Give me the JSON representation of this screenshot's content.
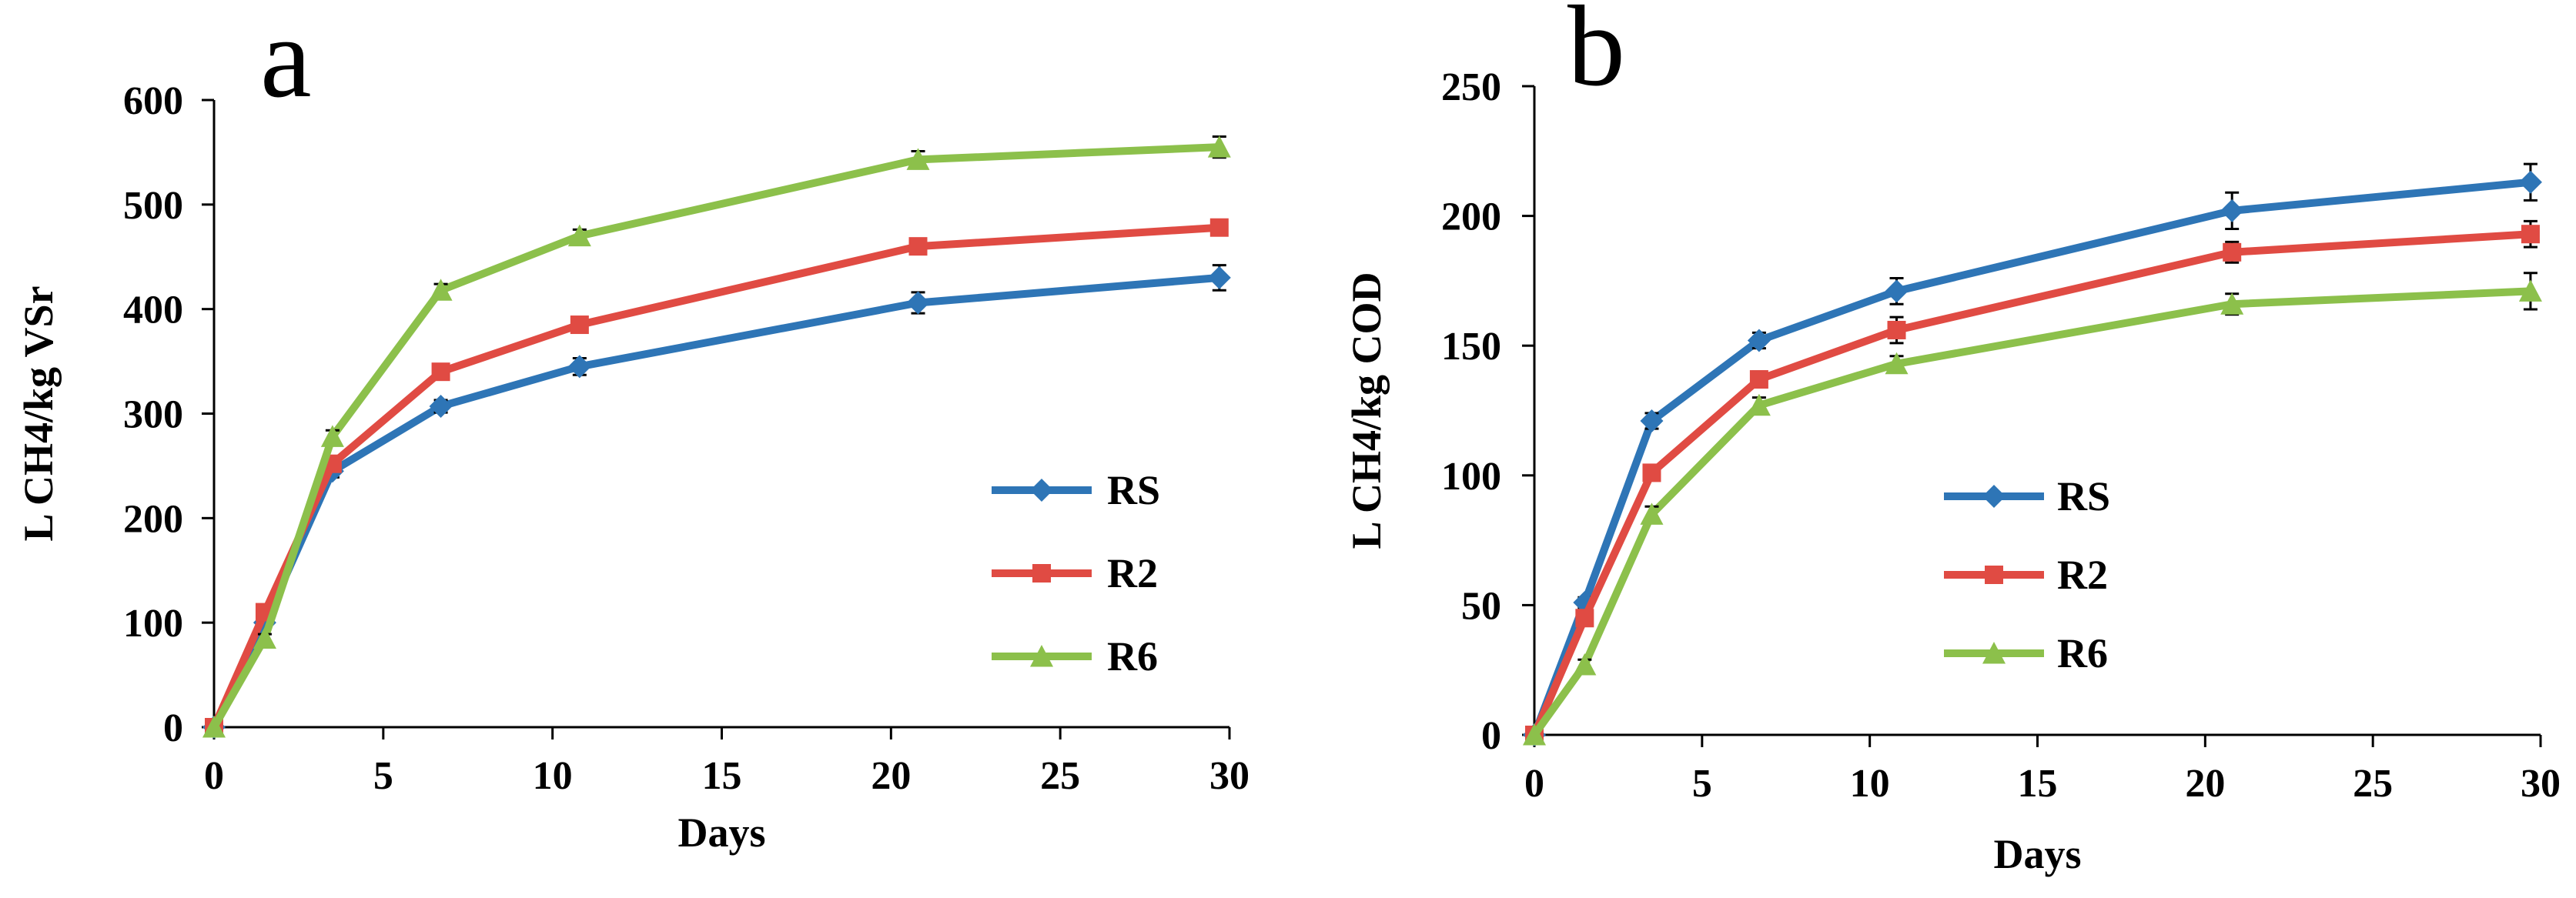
{
  "chart_data": [
    {
      "type": "line",
      "panel_label": "a",
      "xlabel": "Days",
      "ylabel": "L CH4/kg VSr",
      "xlim": [
        0,
        30
      ],
      "ylim": [
        0,
        600
      ],
      "xticks": [
        "0",
        "5",
        "10",
        "15",
        "20",
        "25",
        "30"
      ],
      "yticks": [
        "0",
        "100",
        "200",
        "300",
        "400",
        "500",
        "600"
      ],
      "grid": false,
      "legend_position": "right",
      "x": [
        0,
        1.5,
        3.5,
        6.7,
        10.8,
        20.8,
        29.7
      ],
      "series": [
        {
          "name": "RS",
          "color": "#2e75b6",
          "marker": "diamond",
          "values": [
            0,
            100,
            245,
            307,
            345,
            406,
            430
          ],
          "errors": [
            0,
            4,
            6,
            6,
            8,
            10,
            12
          ]
        },
        {
          "name": "R2",
          "color": "#e04b43",
          "marker": "square",
          "values": [
            0,
            110,
            252,
            340,
            385,
            460,
            478
          ],
          "errors": [
            0,
            4,
            5,
            6,
            6,
            6,
            6
          ]
        },
        {
          "name": "R6",
          "color": "#8cc04b",
          "marker": "triangle",
          "values": [
            0,
            85,
            278,
            418,
            470,
            543,
            555
          ],
          "errors": [
            0,
            4,
            6,
            6,
            6,
            8,
            10
          ]
        }
      ]
    },
    {
      "type": "line",
      "panel_label": "b",
      "xlabel": "Days",
      "ylabel": "L CH4/kg COD",
      "xlim": [
        0,
        30
      ],
      "ylim": [
        0,
        250
      ],
      "xticks": [
        "0",
        "5",
        "10",
        "15",
        "20",
        "25",
        "30"
      ],
      "yticks": [
        "0",
        "50",
        "100",
        "150",
        "200",
        "250"
      ],
      "grid": false,
      "legend_position": "right",
      "x": [
        0,
        1.5,
        3.5,
        6.7,
        10.8,
        20.8,
        29.7
      ],
      "series": [
        {
          "name": "RS",
          "color": "#2e75b6",
          "marker": "diamond",
          "values": [
            0,
            51,
            121,
            152,
            171,
            202,
            213
          ],
          "errors": [
            0,
            2,
            3,
            3,
            5,
            7,
            7
          ]
        },
        {
          "name": "R2",
          "color": "#e04b43",
          "marker": "square",
          "values": [
            0,
            45,
            101,
            137,
            156,
            186,
            193
          ],
          "errors": [
            0,
            2,
            3,
            3,
            5,
            4,
            5
          ]
        },
        {
          "name": "R6",
          "color": "#8cc04b",
          "marker": "triangle",
          "values": [
            0,
            27,
            85,
            127,
            143,
            166,
            171
          ],
          "errors": [
            0,
            2,
            3,
            3,
            3,
            4,
            7
          ]
        }
      ]
    }
  ]
}
